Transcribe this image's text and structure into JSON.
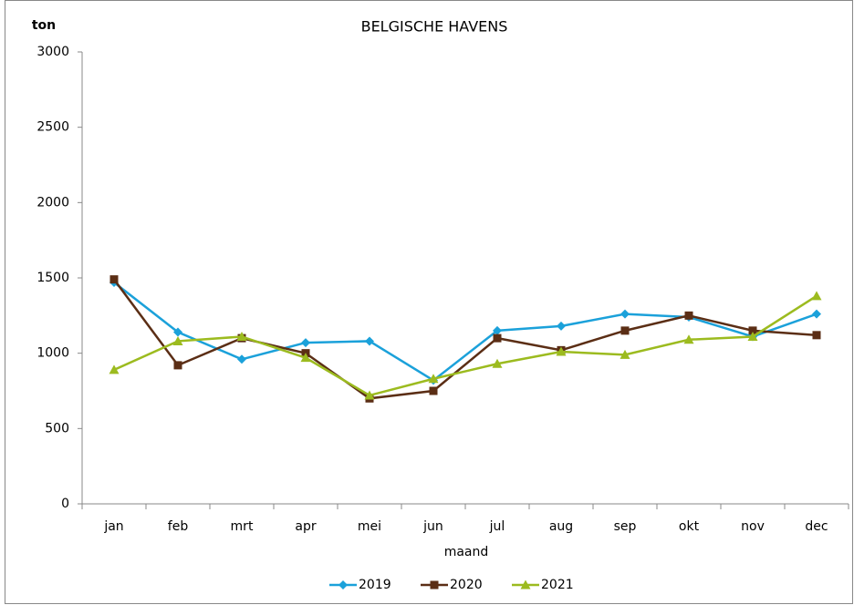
{
  "chart_data": {
    "type": "line",
    "title": "BELGISCHE HAVENS",
    "y_label": "ton",
    "x_label": "maand",
    "categories": [
      "jan",
      "feb",
      "mrt",
      "apr",
      "mei",
      "jun",
      "jul",
      "aug",
      "sep",
      "okt",
      "nov",
      "dec"
    ],
    "series": [
      {
        "name": "2019",
        "color": "#1ba1da",
        "marker": "diamond",
        "values": [
          1470,
          1140,
          960,
          1070,
          1080,
          820,
          1150,
          1180,
          1260,
          1240,
          1110,
          1260
        ]
      },
      {
        "name": "2020",
        "color": "#5b2e15",
        "marker": "square",
        "values": [
          1490,
          920,
          1100,
          1000,
          700,
          750,
          1100,
          1020,
          1150,
          1250,
          1150,
          1120
        ]
      },
      {
        "name": "2021",
        "color": "#9cbb1f",
        "marker": "triangle",
        "values": [
          890,
          1080,
          1110,
          970,
          720,
          830,
          930,
          1010,
          990,
          1090,
          1110,
          1380
        ]
      }
    ],
    "ylim": [
      0,
      3000
    ],
    "yticks": [
      0,
      500,
      1000,
      1500,
      2000,
      2500,
      3000
    ],
    "grid": false,
    "legend": "bottom"
  }
}
